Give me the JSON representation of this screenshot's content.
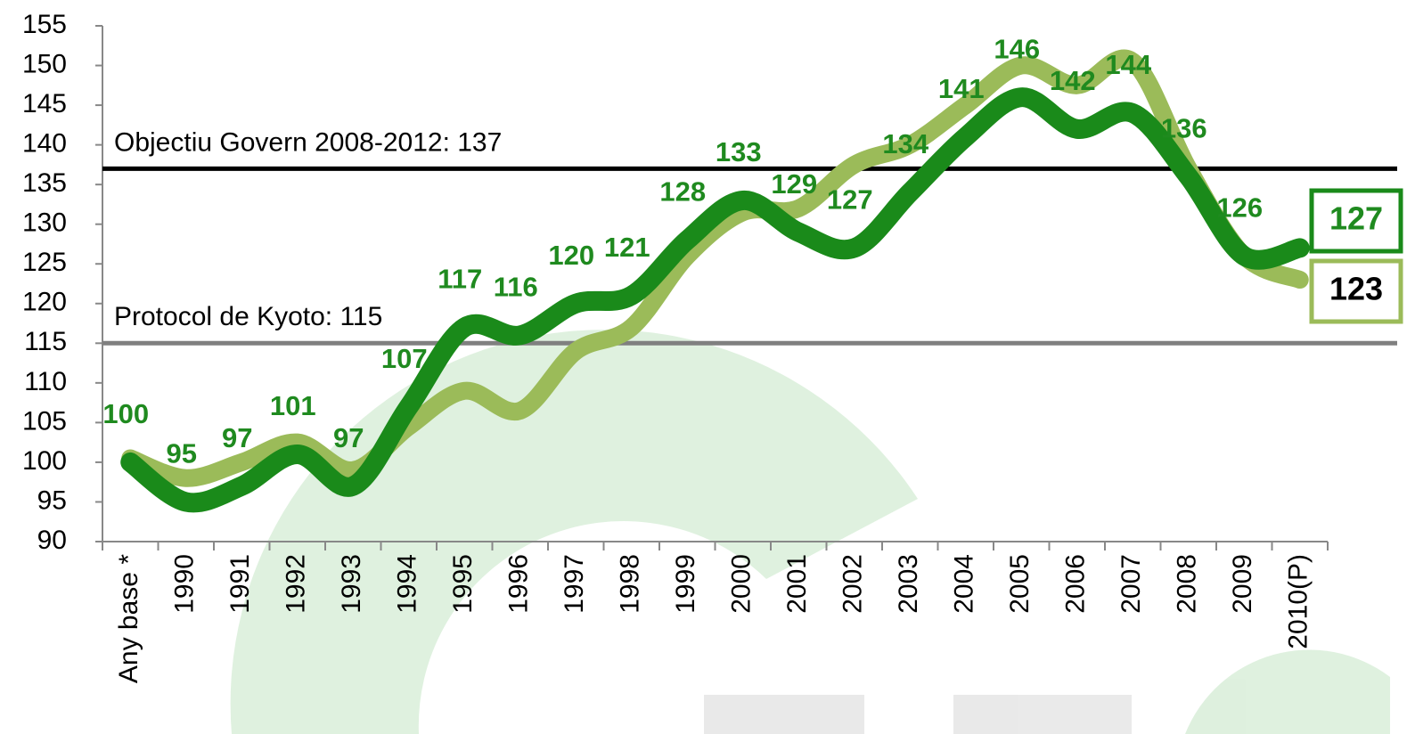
{
  "chart_data": {
    "type": "line",
    "categories": [
      "Any base *",
      "1990",
      "1991",
      "1992",
      "1993",
      "1994",
      "1995",
      "1996",
      "1997",
      "1998",
      "1999",
      "2000",
      "2001",
      "2002",
      "2003",
      "2004",
      "2005",
      "2006",
      "2007",
      "2008",
      "2009",
      "2010(P)"
    ],
    "series": [
      {
        "color": "#1a8a1a",
        "values": [
          100,
          95,
          97,
          101,
          97,
          107,
          117,
          116,
          120,
          121,
          128,
          133,
          129,
          127,
          134,
          141,
          146,
          142,
          144,
          136,
          126,
          127
        ]
      },
      {
        "color": "#9bbb59",
        "values": [
          100.5,
          98,
          100,
          102.5,
          99,
          104.5,
          109,
          106.5,
          114,
          117,
          126,
          131.5,
          132,
          137.5,
          140,
          145,
          150,
          147.5,
          150.5,
          137,
          126,
          123
        ]
      }
    ],
    "reference_lines": [
      {
        "label": "Objectiu Govern 2008-2012: 137",
        "value": 137,
        "color": "#000000"
      },
      {
        "label": "Protocol de Kyoto: 115",
        "value": 115,
        "color": "#808080"
      }
    ],
    "ylim": [
      90,
      155
    ],
    "yticks": [
      90,
      95,
      100,
      105,
      110,
      115,
      120,
      125,
      130,
      135,
      140,
      145,
      150,
      155
    ]
  }
}
